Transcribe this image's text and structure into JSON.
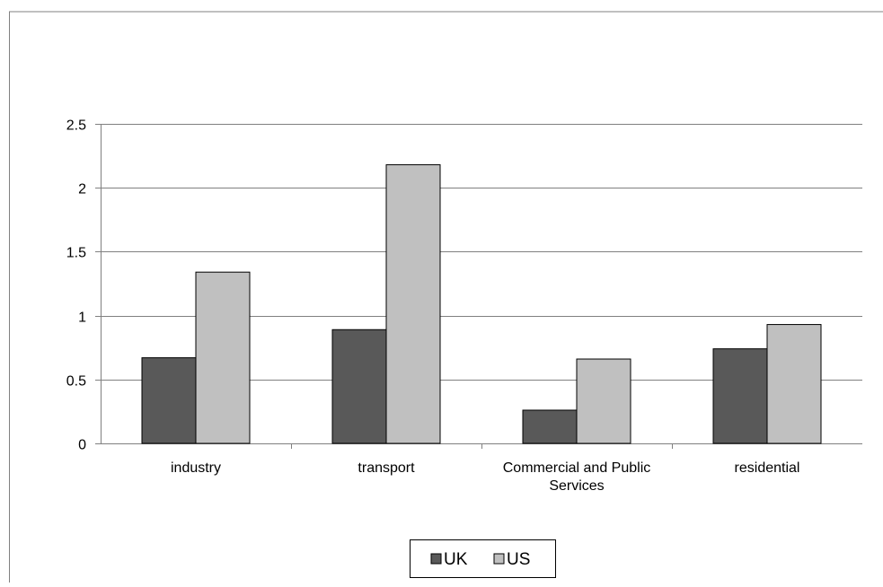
{
  "chart_data": {
    "type": "bar",
    "categories": [
      [
        "industry"
      ],
      [
        "transport"
      ],
      [
        "Commercial and Public",
        "Services"
      ],
      [
        "residential"
      ]
    ],
    "series": [
      {
        "name": "UK",
        "values": [
          0.67,
          0.89,
          0.26,
          0.74
        ],
        "color": "#595959"
      },
      {
        "name": "US",
        "values": [
          1.34,
          2.18,
          0.66,
          0.93
        ],
        "color": "#c0c0c0"
      }
    ],
    "ylim": [
      0,
      2.5
    ],
    "yticks": [
      "0",
      "0.5",
      "1",
      "1.5",
      "2",
      "2.5"
    ],
    "ytick_values": [
      0,
      0.5,
      1,
      1.5,
      2,
      2.5
    ],
    "grid": true,
    "legend_position": "bottom",
    "title": "",
    "xlabel": "",
    "ylabel": ""
  }
}
